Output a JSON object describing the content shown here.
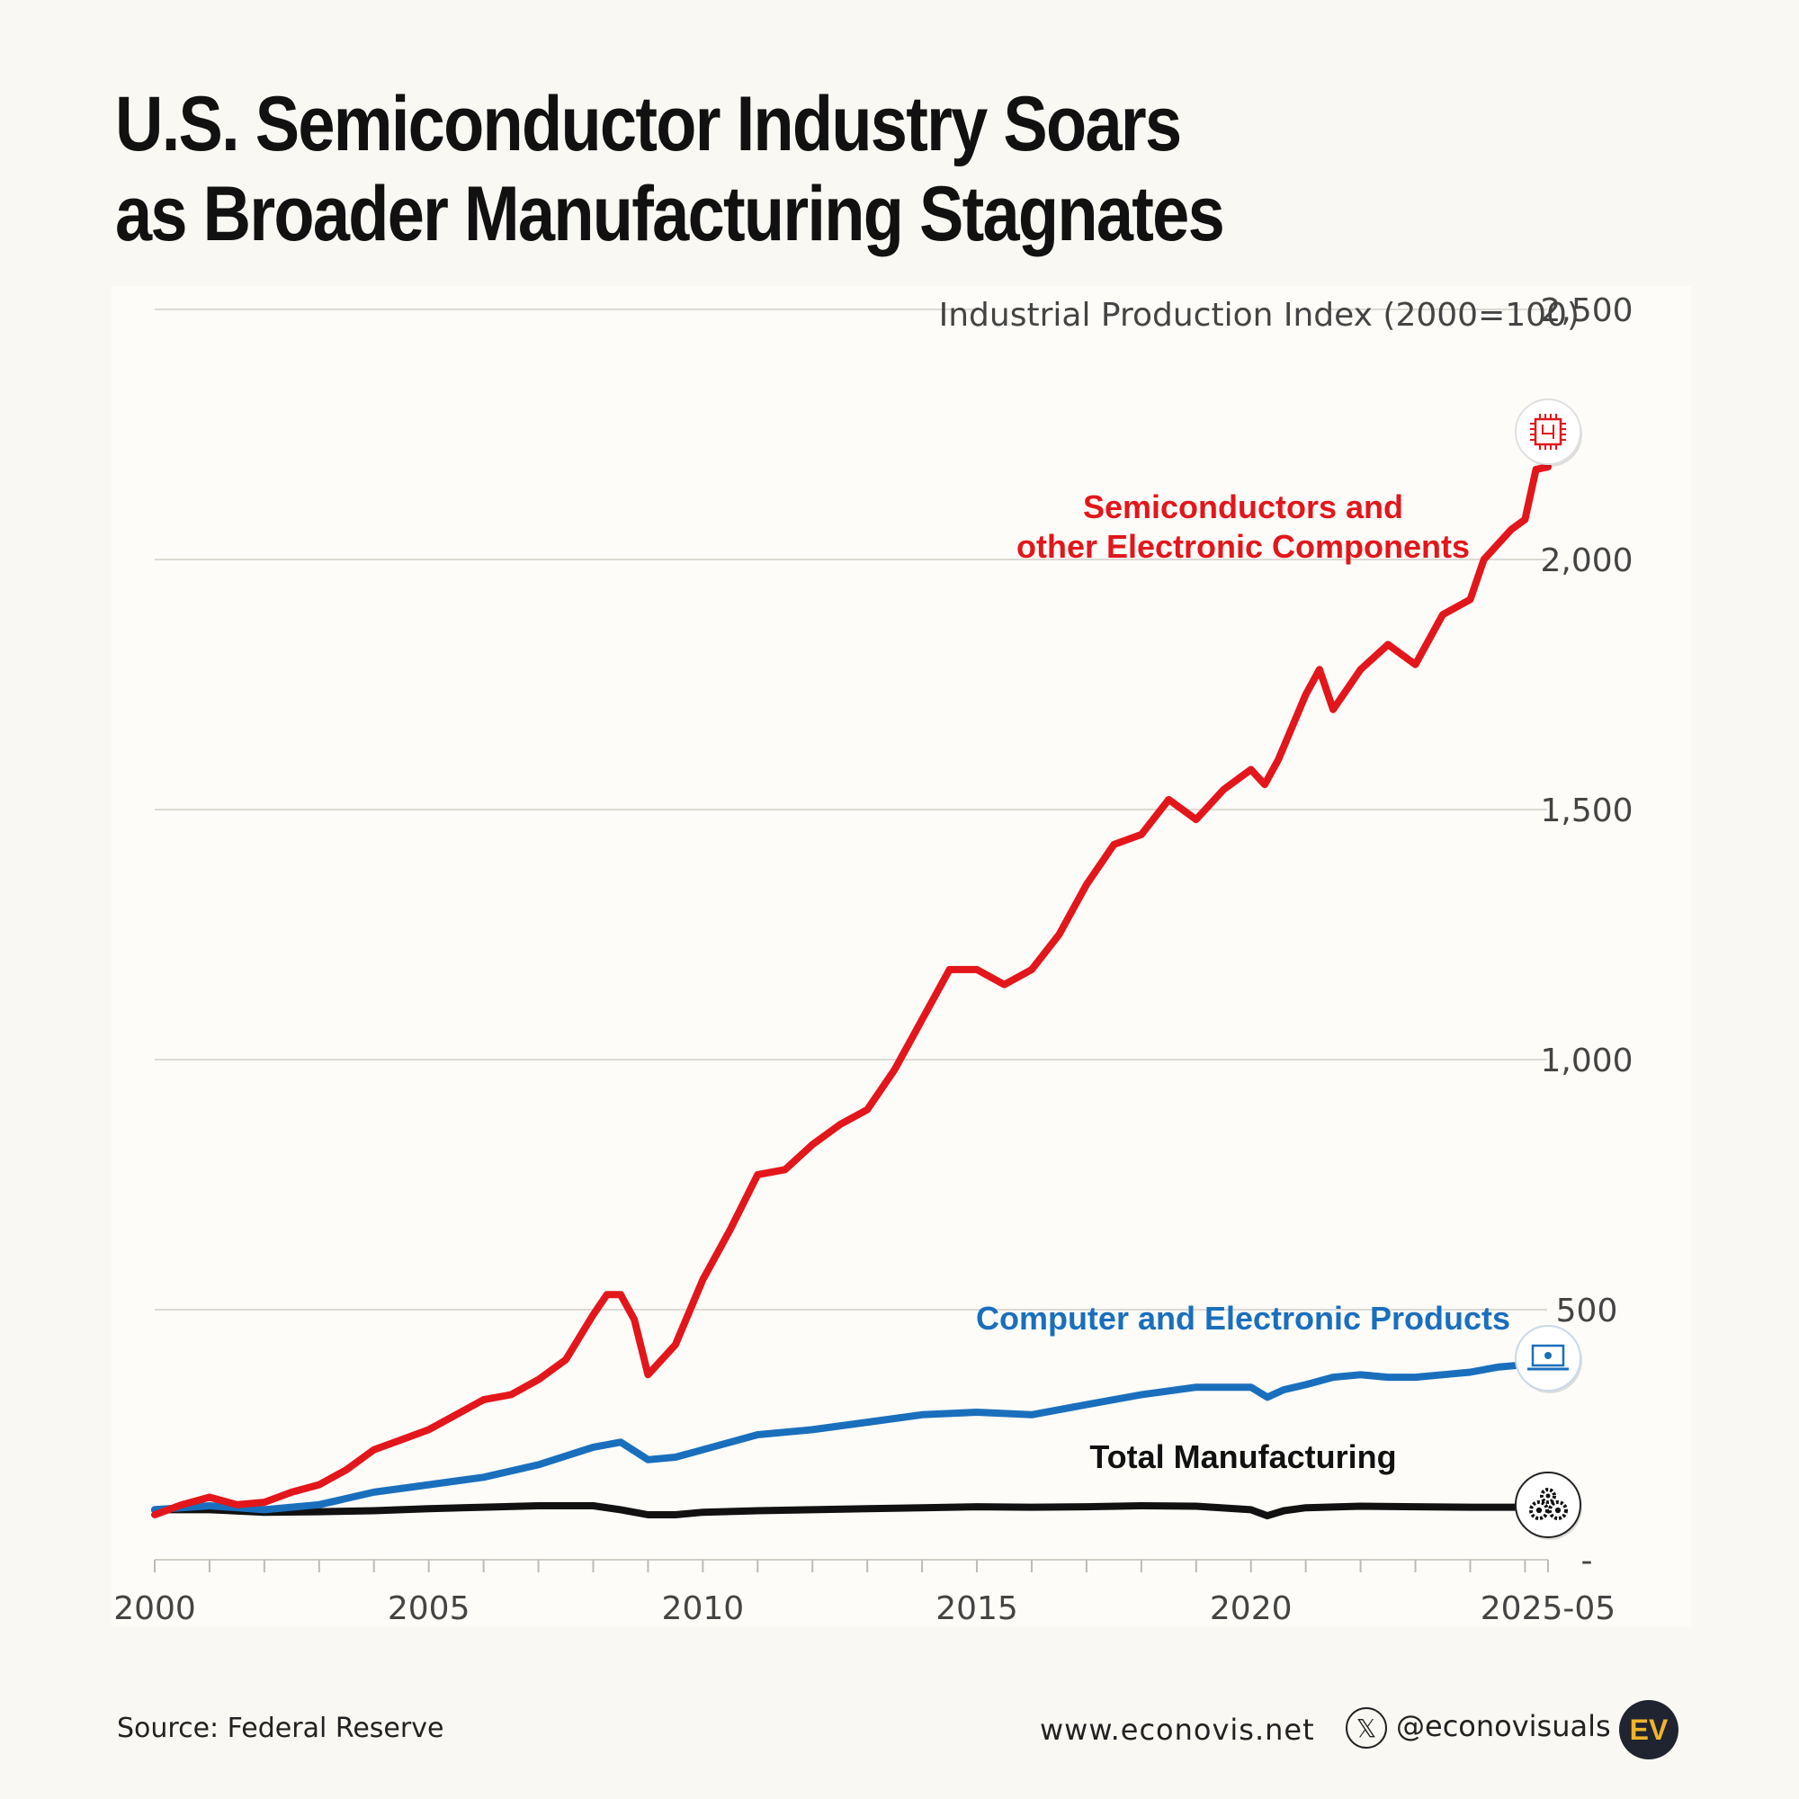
{
  "header": {
    "title_line1": "U.S. Semiconductor Industry Soars",
    "title_line2": "as Broader Manufacturing Stagnates"
  },
  "footer": {
    "source": "Source: Federal Reserve",
    "website": "www.econovis.net",
    "x_icon": "x-logo-icon",
    "handle": "@econovisuals",
    "logo_text": "EV"
  },
  "colors": {
    "semis": "#e3161b",
    "computers": "#1a6fbd",
    "total": "#111111",
    "grid": "#dcdad4"
  },
  "chart_data": {
    "type": "line",
    "title": "U.S. Semiconductor Industry Soars as Broader Manufacturing Stagnates",
    "ylabel": "Industrial Production Index (2000=100)",
    "xlabel": "",
    "xlim": [
      2000,
      2025.42
    ],
    "ylim": [
      0,
      2500
    ],
    "y_ticks": [
      {
        "value": 0,
        "label": "-"
      },
      {
        "value": 500,
        "label": "500"
      },
      {
        "value": 1000,
        "label": "1,000"
      },
      {
        "value": 1500,
        "label": "1,500"
      },
      {
        "value": 2000,
        "label": "2,000"
      },
      {
        "value": 2500,
        "label": "2,500"
      }
    ],
    "x_ticks": [
      {
        "value": 2000,
        "label": "2000"
      },
      {
        "value": 2005,
        "label": "2005"
      },
      {
        "value": 2010,
        "label": "2010"
      },
      {
        "value": 2015,
        "label": "2015"
      },
      {
        "value": 2020,
        "label": "2020"
      },
      {
        "value": 2025.42,
        "label": "2025-05"
      }
    ],
    "minor_x_ticks": [
      2001,
      2002,
      2003,
      2004,
      2006,
      2007,
      2008,
      2009,
      2011,
      2012,
      2013,
      2014,
      2016,
      2017,
      2018,
      2019,
      2021,
      2022,
      2023,
      2024,
      2025
    ],
    "series": [
      {
        "name": "Semiconductors and other Electronic Components",
        "label_lines": [
          "Semiconductors and",
          "other Electronic Components"
        ],
        "icon": "chip-icon",
        "x": [
          2000,
          2000.5,
          2001,
          2001.5,
          2002,
          2002.5,
          2003,
          2003.5,
          2004,
          2004.5,
          2005,
          2005.5,
          2006,
          2006.5,
          2007,
          2007.5,
          2008,
          2008.25,
          2008.5,
          2008.75,
          2009,
          2009.5,
          2010,
          2010.5,
          2011,
          2011.5,
          2012,
          2012.5,
          2013,
          2013.5,
          2014,
          2014.5,
          2015,
          2015.5,
          2016,
          2016.5,
          2017,
          2017.5,
          2018,
          2018.5,
          2019,
          2019.5,
          2020,
          2020.25,
          2020.5,
          2021,
          2021.25,
          2021.5,
          2022,
          2022.5,
          2023,
          2023.5,
          2024,
          2024.25,
          2024.5,
          2024.75,
          2025,
          2025.2,
          2025.42
        ],
        "values": [
          90,
          110,
          125,
          110,
          115,
          135,
          150,
          180,
          220,
          240,
          260,
          290,
          320,
          330,
          360,
          400,
          490,
          530,
          530,
          480,
          370,
          430,
          560,
          660,
          770,
          780,
          830,
          870,
          900,
          980,
          1080,
          1180,
          1180,
          1150,
          1180,
          1250,
          1350,
          1430,
          1450,
          1520,
          1480,
          1540,
          1580,
          1550,
          1600,
          1730,
          1780,
          1700,
          1780,
          1830,
          1790,
          1890,
          1920,
          2000,
          2030,
          2060,
          2080,
          2180,
          2185
        ]
      },
      {
        "name": "Computer and Electronic Products",
        "label_lines": [
          "Computer and Electronic Products"
        ],
        "icon": "laptop-icon",
        "x": [
          2000,
          2001,
          2002,
          2003,
          2004,
          2005,
          2006,
          2007,
          2008,
          2008.5,
          2009,
          2009.5,
          2010,
          2011,
          2012,
          2013,
          2014,
          2015,
          2016,
          2017,
          2018,
          2019,
          2020,
          2020.3,
          2020.6,
          2021,
          2021.5,
          2022,
          2022.5,
          2023,
          2023.5,
          2024,
          2024.5,
          2025,
          2025.42
        ],
        "values": [
          100,
          108,
          100,
          110,
          135,
          150,
          165,
          190,
          225,
          235,
          200,
          205,
          220,
          250,
          260,
          275,
          290,
          295,
          290,
          310,
          330,
          345,
          345,
          325,
          340,
          350,
          365,
          370,
          365,
          365,
          370,
          375,
          385,
          390,
          390
        ]
      },
      {
        "name": "Total Manufacturing",
        "label_lines": [
          "Total Manufacturing"
        ],
        "icon": "gears-icon",
        "x": [
          2000,
          2001,
          2002,
          2003,
          2004,
          2005,
          2006,
          2007,
          2008,
          2008.5,
          2009,
          2009.5,
          2010,
          2011,
          2012,
          2013,
          2014,
          2015,
          2016,
          2017,
          2018,
          2019,
          2020,
          2020.3,
          2020.6,
          2021,
          2022,
          2023,
          2024,
          2025,
          2025.42
        ],
        "values": [
          100,
          100,
          95,
          96,
          98,
          102,
          105,
          108,
          108,
          100,
          90,
          90,
          95,
          98,
          100,
          102,
          104,
          106,
          105,
          106,
          108,
          107,
          100,
          88,
          98,
          104,
          107,
          106,
          105,
          105,
          105
        ]
      }
    ]
  }
}
